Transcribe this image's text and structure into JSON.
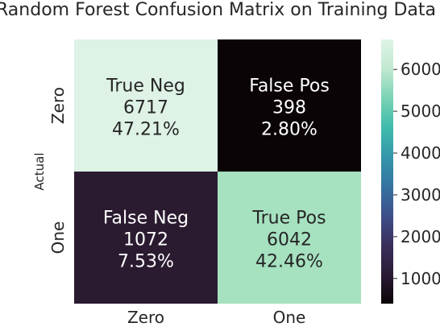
{
  "chart_data": {
    "type": "heatmap",
    "title": "Random Forest Confusion Matrix on Training Data",
    "xlabel": "",
    "ylabel": "Actual",
    "x_categories": [
      "Zero",
      "One"
    ],
    "y_categories": [
      "Zero",
      "One"
    ],
    "cells": [
      {
        "row": 0,
        "col": 0,
        "label": "True Neg",
        "count": "6717",
        "percent": "47.21%",
        "value": 6717,
        "color": "#def2e6",
        "text_color": "#262626"
      },
      {
        "row": 0,
        "col": 1,
        "label": "False Pos",
        "count": "398",
        "percent": "2.80%",
        "value": 398,
        "color": "#0b0406",
        "text_color": "#ffffff"
      },
      {
        "row": 1,
        "col": 0,
        "label": "False Neg",
        "count": "1072",
        "percent": "7.53%",
        "value": 1072,
        "color": "#2a1b30",
        "text_color": "#ffffff"
      },
      {
        "row": 1,
        "col": 1,
        "label": "True Pos",
        "count": "6042",
        "percent": "42.46%",
        "value": 6042,
        "color": "#a6e1c0",
        "text_color": "#262626"
      }
    ],
    "colorbar": {
      "colormap": "mako",
      "vmin": 398,
      "vmax": 6717,
      "ticks": [
        {
          "value": 1000,
          "label": "1000"
        },
        {
          "value": 2000,
          "label": "2000"
        },
        {
          "value": 3000,
          "label": "3000"
        },
        {
          "value": 4000,
          "label": "4000"
        },
        {
          "value": 5000,
          "label": "5000"
        },
        {
          "value": 6000,
          "label": "6000"
        }
      ],
      "stops": [
        "#0b0406",
        "#2b1c35",
        "#3a2f5c",
        "#3e4f8a",
        "#3573a1",
        "#3397a9",
        "#3fbbad",
        "#7ad3b4",
        "#c1e8d0",
        "#def5e5"
      ]
    }
  }
}
